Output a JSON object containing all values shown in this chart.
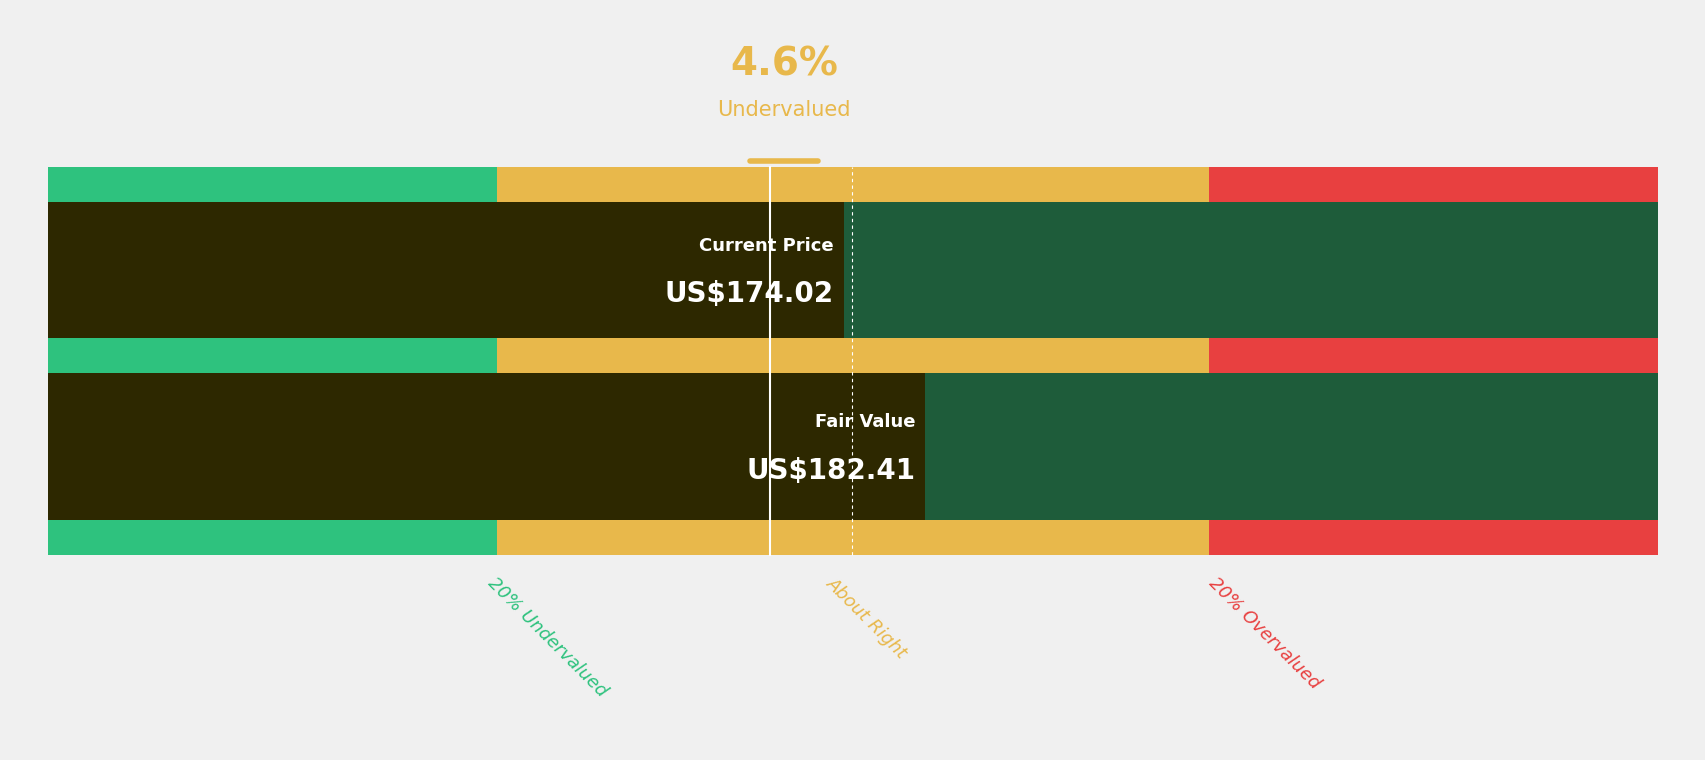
{
  "background_color": "#f0f0f0",
  "green_color": "#2ec27e",
  "dark_green_color": "#1e5c3a",
  "amber_color": "#e8b84b",
  "label_box_color": "#2d2800",
  "red_color": "#e84040",
  "white": "#ffffff",
  "percent_color": "#e8b84b",
  "label_under_color": "#2ec27e",
  "label_about_color": "#e8b84b",
  "label_over_color": "#e84040",
  "percent_text": "4.6%",
  "percent_label": "Undervalued",
  "current_price_label": "Current Price",
  "current_price_value": "US$174.02",
  "fair_value_label": "Fair Value",
  "fair_value_value": "US$182.41",
  "label_20under": "20% Undervalued",
  "label_about": "About Right",
  "label_20over": "20% Overvalued",
  "current_price": 174.02,
  "fair_value": 182.41,
  "range_min": 100.0,
  "range_max": 265.0,
  "under_boundary": 146.0,
  "over_boundary": 219.0
}
